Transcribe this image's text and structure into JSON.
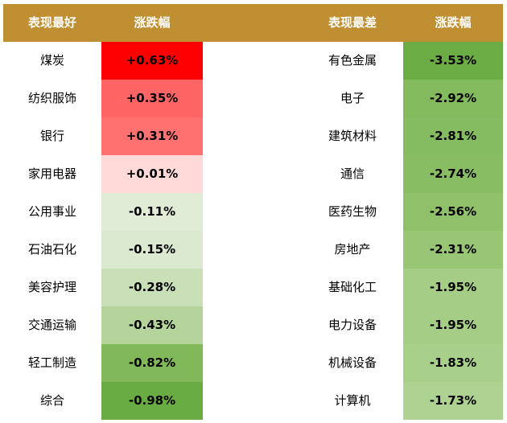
{
  "header": {
    "best_title": "表现最好",
    "best_change": "涨跌幅",
    "worst_title": "表现最差",
    "worst_change": "涨跌幅"
  },
  "chart_data": {
    "type": "table",
    "columns": [
      "表现最好",
      "涨跌幅",
      "表现最差",
      "涨跌幅"
    ],
    "best": [
      {
        "name": "煤炭",
        "change": "+0.63%",
        "value": 0.63,
        "color": "#ff0000"
      },
      {
        "name": "纺织服饰",
        "change": "+0.35%",
        "value": 0.35,
        "color": "#ff6565"
      },
      {
        "name": "银行",
        "change": "+0.31%",
        "value": 0.31,
        "color": "#ff7171"
      },
      {
        "name": "家用电器",
        "change": "+0.01%",
        "value": 0.01,
        "color": "#ffdad8"
      },
      {
        "name": "公用事业",
        "change": "-0.11%",
        "value": -0.11,
        "color": "#e0ecd6"
      },
      {
        "name": "石油石化",
        "change": "-0.15%",
        "value": -0.15,
        "color": "#dbe9d0"
      },
      {
        "name": "美容护理",
        "change": "-0.28%",
        "value": -0.28,
        "color": "#c9dfb8"
      },
      {
        "name": "交通运输",
        "change": "-0.43%",
        "value": -0.43,
        "color": "#b4d49c"
      },
      {
        "name": "轻工制造",
        "change": "-0.82%",
        "value": -0.82,
        "color": "#80b85a"
      },
      {
        "name": "综合",
        "change": "-0.98%",
        "value": -0.98,
        "color": "#6aac44"
      }
    ],
    "worst": [
      {
        "name": "有色金属",
        "change": "-3.53%",
        "value": -3.53,
        "color": "#6cac45"
      },
      {
        "name": "电子",
        "change": "-2.92%",
        "value": -2.92,
        "color": "#83ba5e"
      },
      {
        "name": "建筑材料",
        "change": "-2.81%",
        "value": -2.81,
        "color": "#86bc61"
      },
      {
        "name": "通信",
        "change": "-2.74%",
        "value": -2.74,
        "color": "#88bd64"
      },
      {
        "name": "医药生物",
        "change": "-2.56%",
        "value": -2.56,
        "color": "#8ec16a"
      },
      {
        "name": "房地产",
        "change": "-2.31%",
        "value": -2.31,
        "color": "#98c675"
      },
      {
        "name": "基础化工",
        "change": "-1.95%",
        "value": -1.95,
        "color": "#a5cd86"
      },
      {
        "name": "电力设备",
        "change": "-1.95%",
        "value": -1.95,
        "color": "#a5cd86"
      },
      {
        "name": "机械设备",
        "change": "-1.83%",
        "value": -1.83,
        "color": "#a9d08b"
      },
      {
        "name": "计算机",
        "change": "-1.73%",
        "value": -1.73,
        "color": "#add292"
      }
    ]
  }
}
